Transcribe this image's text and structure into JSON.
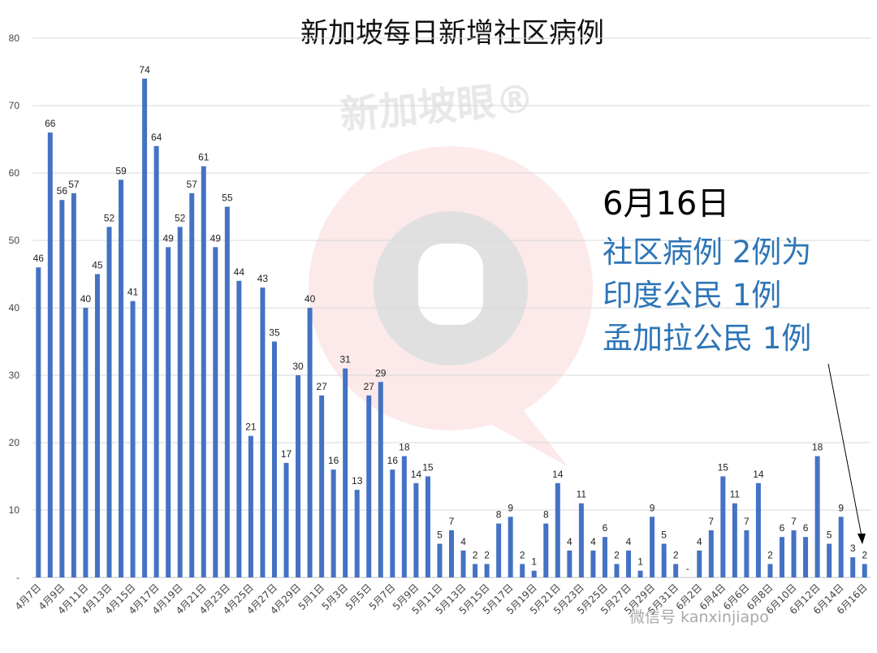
{
  "chart_data": {
    "type": "bar",
    "title": "新加坡每日新增社区病例",
    "xlabel": "",
    "ylabel": "",
    "ylim": [
      0,
      80
    ],
    "yticks": [
      "-",
      "10",
      "20",
      "30",
      "40",
      "50",
      "60",
      "70",
      "80"
    ],
    "grid": true,
    "legend": "none",
    "bar_color": "#4472c4",
    "categories": [
      "4月7日",
      "4月8日",
      "4月9日",
      "4月10日",
      "4月11日",
      "4月12日",
      "4月13日",
      "4月14日",
      "4月15日",
      "4月16日",
      "4月17日",
      "4月18日",
      "4月19日",
      "4月20日",
      "4月21日",
      "4月22日",
      "4月23日",
      "4月24日",
      "4月25日",
      "4月26日",
      "4月27日",
      "4月28日",
      "4月29日",
      "4月30日",
      "5月1日",
      "5月2日",
      "5月3日",
      "5月4日",
      "5月5日",
      "5月6日",
      "5月7日",
      "5月8日",
      "5月9日",
      "5月10日",
      "5月11日",
      "5月12日",
      "5月13日",
      "5月14日",
      "5月15日",
      "5月16日",
      "5月17日",
      "5月18日",
      "5月19日",
      "5月20日",
      "5月21日",
      "5月22日",
      "5月23日",
      "5月24日",
      "5月25日",
      "5月26日",
      "5月27日",
      "5月28日",
      "5月29日",
      "5月30日",
      "5月31日",
      "6月1日",
      "6月2日",
      "6月3日",
      "6月4日",
      "6月5日",
      "6月6日",
      "6月7日",
      "6月8日",
      "6月9日",
      "6月10日",
      "6月11日",
      "6月12日",
      "6月13日",
      "6月14日",
      "6月15日",
      "6月16日"
    ],
    "x_tick_labels": [
      "4月7日",
      "4月9日",
      "4月11日",
      "4月13日",
      "4月15日",
      "4月17日",
      "4月19日",
      "4月21日",
      "4月23日",
      "4月25日",
      "4月27日",
      "4月29日",
      "5月1日",
      "5月3日",
      "5月5日",
      "5月7日",
      "5月9日",
      "5月11日",
      "5月13日",
      "5月15日",
      "5月17日",
      "5月19日",
      "5月21日",
      "5月23日",
      "5月25日",
      "5月27日",
      "5月29日",
      "5月31日",
      "6月2日",
      "6月4日",
      "6月6日",
      "6月8日",
      "6月10日",
      "6月12日",
      "6月14日",
      "6月16日"
    ],
    "values": [
      46,
      66,
      56,
      57,
      40,
      45,
      52,
      59,
      41,
      74,
      64,
      49,
      52,
      57,
      61,
      49,
      55,
      44,
      21,
      43,
      35,
      17,
      30,
      40,
      27,
      16,
      31,
      13,
      27,
      29,
      16,
      18,
      14,
      15,
      5,
      7,
      4,
      2,
      2,
      8,
      9,
      2,
      1,
      8,
      14,
      4,
      11,
      4,
      6,
      2,
      4,
      1,
      9,
      5,
      2,
      0,
      4,
      7,
      15,
      11,
      7,
      14,
      2,
      6,
      7,
      6,
      18,
      5,
      9,
      3,
      2
    ],
    "data_labels": [
      "46",
      "66",
      "56",
      "57",
      "40",
      "45",
      "52",
      "59",
      "41",
      "74",
      "64",
      "49",
      "52",
      "57",
      "61",
      "49",
      "55",
      "44",
      "21",
      "43",
      "35",
      "17",
      "30",
      "40",
      "27",
      "16",
      "31",
      "13",
      "27",
      "29",
      "16",
      "18",
      "14",
      "15",
      "5",
      "7",
      "4",
      "2",
      "2",
      "8",
      "9",
      "2",
      "1",
      "8",
      "14",
      "4",
      "11",
      "4",
      "6",
      "2",
      "4",
      "1",
      "9",
      "5",
      "2",
      "-",
      "4",
      "7",
      "15",
      "11",
      "7",
      "14",
      "2",
      "6",
      "7",
      "6",
      "18",
      "5",
      "9",
      "3",
      "2"
    ]
  },
  "annotation": {
    "date": "6月16日",
    "line1": "社区病例 2例为",
    "line2": "印度公民 1例",
    "line3": "孟加拉公民 1例"
  },
  "watermark": {
    "brand": "新加坡眼®",
    "footer": "微信号 kanxinjiapo"
  }
}
